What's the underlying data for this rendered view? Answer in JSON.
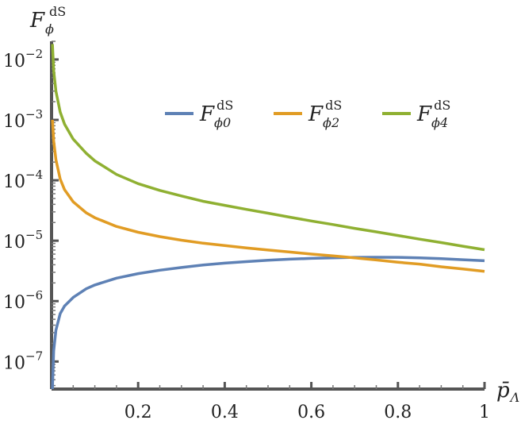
{
  "chart_data": {
    "type": "line",
    "ylabel": {
      "main": "F",
      "sub": "ϕ",
      "sup": "dS"
    },
    "xlabel": {
      "main": "p̄",
      "sub": "Λ"
    },
    "xlim": [
      0,
      1
    ],
    "ylim": [
      3.5e-08,
      0.02
    ],
    "yscale": "log",
    "x_ticks": [
      "0.2",
      "0.4",
      "0.6",
      "0.8",
      "1"
    ],
    "y_ticks": [
      {
        "base": "10",
        "exp": "−2"
      },
      {
        "base": "10",
        "exp": "−3"
      },
      {
        "base": "10",
        "exp": "−4"
      },
      {
        "base": "10",
        "exp": "−5"
      },
      {
        "base": "10",
        "exp": "−6"
      },
      {
        "base": "10",
        "exp": "−7"
      }
    ],
    "y_tick_values": [
      0.01,
      0.001,
      0.0001,
      1e-05,
      1e-06,
      1e-07
    ],
    "legend_position": "top-right",
    "series": [
      {
        "name": "F_ϕ0^dS",
        "label_main": "F",
        "label_sub": "ϕ0",
        "label_sup": "dS",
        "color": "#5e81b5",
        "x": [
          0.002,
          0.005,
          0.01,
          0.02,
          0.03,
          0.05,
          0.08,
          0.1,
          0.15,
          0.2,
          0.25,
          0.3,
          0.35,
          0.4,
          0.45,
          0.5,
          0.55,
          0.6,
          0.65,
          0.7,
          0.75,
          0.8,
          0.85,
          0.9,
          0.95,
          1.0
        ],
        "y": [
          3.5e-08,
          1.5e-07,
          3.3e-07,
          6.2e-07,
          8.3e-07,
          1.15e-06,
          1.6e-06,
          1.85e-06,
          2.4e-06,
          2.85e-06,
          3.25e-06,
          3.6e-06,
          3.95e-06,
          4.25e-06,
          4.5e-06,
          4.75e-06,
          4.95e-06,
          5.1e-06,
          5.2e-06,
          5.3e-06,
          5.32e-06,
          5.3e-06,
          5.2e-06,
          5.05e-06,
          4.85e-06,
          4.65e-06
        ]
      },
      {
        "name": "F_ϕ2^dS",
        "label_main": "F",
        "label_sub": "ϕ2",
        "label_sup": "dS",
        "color": "#e19c24",
        "x": [
          0.002,
          0.005,
          0.01,
          0.02,
          0.03,
          0.05,
          0.08,
          0.1,
          0.15,
          0.2,
          0.25,
          0.3,
          0.35,
          0.4,
          0.45,
          0.5,
          0.55,
          0.6,
          0.65,
          0.7,
          0.75,
          0.8,
          0.85,
          0.9,
          0.95,
          1.0
        ],
        "y": [
          0.001,
          0.00045,
          0.00022,
          0.000105,
          7e-05,
          4.4e-05,
          2.9e-05,
          2.4e-05,
          1.72e-05,
          1.38e-05,
          1.17e-05,
          1.02e-05,
          9.1e-06,
          8.3e-06,
          7.6e-06,
          7e-06,
          6.5e-06,
          6e-06,
          5.6e-06,
          5.2e-06,
          4.8e-06,
          4.4e-06,
          4.1e-06,
          3.7e-06,
          3.4e-06,
          3.1e-06
        ]
      },
      {
        "name": "F_ϕ4^dS",
        "label_main": "F",
        "label_sub": "ϕ4",
        "label_sup": "dS",
        "color": "#8fb032",
        "x": [
          0.002,
          0.005,
          0.01,
          0.02,
          0.03,
          0.05,
          0.08,
          0.1,
          0.15,
          0.2,
          0.25,
          0.3,
          0.35,
          0.4,
          0.45,
          0.5,
          0.55,
          0.6,
          0.65,
          0.7,
          0.75,
          0.8,
          0.85,
          0.9,
          0.95,
          1.0
        ],
        "y": [
          0.018,
          0.0065,
          0.003,
          0.00135,
          0.00085,
          0.00048,
          0.00028,
          0.00021,
          0.000125,
          8.8e-05,
          6.8e-05,
          5.5e-05,
          4.5e-05,
          3.85e-05,
          3.3e-05,
          2.85e-05,
          2.45e-05,
          2.12e-05,
          1.85e-05,
          1.6e-05,
          1.4e-05,
          1.22e-05,
          1.06e-05,
          9.3e-06,
          8.1e-06,
          7.1e-06
        ]
      }
    ]
  }
}
